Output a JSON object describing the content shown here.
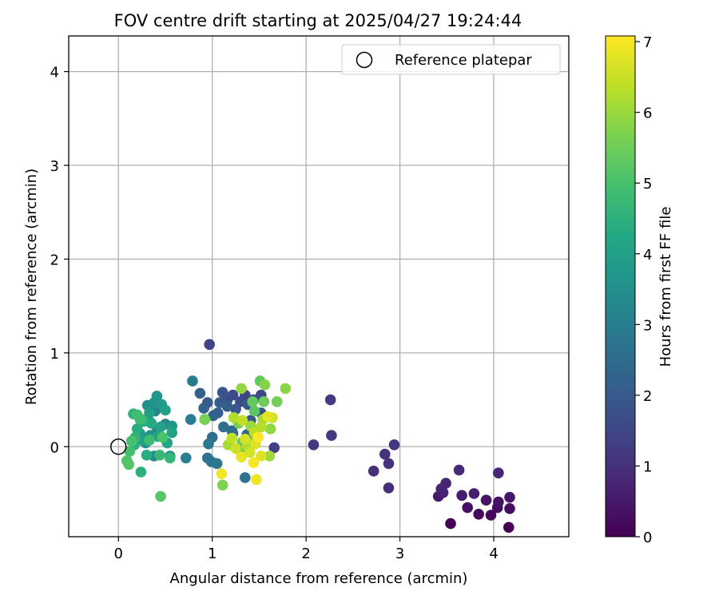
{
  "chart_data": {
    "type": "scatter",
    "title": "FOV centre drift starting at 2025/04/27 19:24:44",
    "xlabel": "Angular distance from reference (arcmin)",
    "ylabel": "Rotation from reference (arcmin)",
    "xlim": [
      -0.53,
      4.8
    ],
    "ylim": [
      -0.96,
      4.38
    ],
    "xticks": [
      "0",
      "1",
      "2",
      "3",
      "4"
    ],
    "yticks": [
      "0",
      "1",
      "2",
      "3",
      "4"
    ],
    "grid": true,
    "legend": {
      "position": "upper-right",
      "entries": [
        "Reference platepar"
      ]
    },
    "reference_point": {
      "x": 0,
      "y": 0
    },
    "colorbar": {
      "label": "Hours from first FF file",
      "range": [
        0,
        7.08
      ],
      "ticks": [
        "0",
        "1",
        "2",
        "3",
        "4",
        "5",
        "6",
        "7"
      ],
      "colormap": "viridis"
    },
    "points": [
      {
        "x": 4.16,
        "y": -0.86,
        "c": 0.0
      },
      {
        "x": 3.54,
        "y": -0.82,
        "c": 0.05
      },
      {
        "x": 3.97,
        "y": -0.73,
        "c": 0.1
      },
      {
        "x": 3.84,
        "y": -0.72,
        "c": 0.15
      },
      {
        "x": 4.04,
        "y": -0.65,
        "c": 0.2
      },
      {
        "x": 4.17,
        "y": -0.66,
        "c": 0.25
      },
      {
        "x": 3.72,
        "y": -0.65,
        "c": 0.3
      },
      {
        "x": 4.05,
        "y": -0.59,
        "c": 0.35
      },
      {
        "x": 3.92,
        "y": -0.57,
        "c": 0.4
      },
      {
        "x": 4.17,
        "y": -0.54,
        "c": 0.45
      },
      {
        "x": 3.41,
        "y": -0.53,
        "c": 0.5
      },
      {
        "x": 3.66,
        "y": -0.52,
        "c": 0.55
      },
      {
        "x": 3.79,
        "y": -0.5,
        "c": 0.6
      },
      {
        "x": 3.46,
        "y": -0.49,
        "c": 0.65
      },
      {
        "x": 3.44,
        "y": -0.45,
        "c": 0.7
      },
      {
        "x": 3.49,
        "y": -0.39,
        "c": 0.75
      },
      {
        "x": 4.05,
        "y": -0.28,
        "c": 0.8
      },
      {
        "x": 3.63,
        "y": -0.25,
        "c": 0.85
      },
      {
        "x": 2.88,
        "y": -0.44,
        "c": 0.9
      },
      {
        "x": 2.72,
        "y": -0.26,
        "c": 0.95
      },
      {
        "x": 2.88,
        "y": -0.18,
        "c": 1.0
      },
      {
        "x": 2.84,
        "y": -0.08,
        "c": 1.05
      },
      {
        "x": 2.94,
        "y": 0.02,
        "c": 1.1
      },
      {
        "x": 2.08,
        "y": 0.02,
        "c": 1.15
      },
      {
        "x": 2.27,
        "y": 0.12,
        "c": 1.2
      },
      {
        "x": 2.26,
        "y": 0.5,
        "c": 1.25
      },
      {
        "x": 1.66,
        "y": -0.01,
        "c": 1.3
      },
      {
        "x": 0.97,
        "y": 1.09,
        "c": 1.4
      },
      {
        "x": 1.35,
        "y": 0.55,
        "c": 1.45
      },
      {
        "x": 1.52,
        "y": 0.55,
        "c": 1.5
      },
      {
        "x": 1.22,
        "y": 0.55,
        "c": 1.55
      },
      {
        "x": 1.3,
        "y": 0.48,
        "c": 1.6
      },
      {
        "x": 1.16,
        "y": 0.5,
        "c": 1.65
      },
      {
        "x": 1.44,
        "y": 0.5,
        "c": 1.7
      },
      {
        "x": 1.52,
        "y": 0.36,
        "c": 1.75
      },
      {
        "x": 1.11,
        "y": 0.58,
        "c": 1.8
      },
      {
        "x": 1.25,
        "y": 0.4,
        "c": 1.85
      },
      {
        "x": 1.41,
        "y": 0.28,
        "c": 1.9
      },
      {
        "x": 1.38,
        "y": 0.45,
        "c": 1.95
      },
      {
        "x": 0.95,
        "y": 0.47,
        "c": 2.0
      },
      {
        "x": 1.08,
        "y": 0.47,
        "c": 2.05
      },
      {
        "x": 1.16,
        "y": 0.43,
        "c": 2.1
      },
      {
        "x": 1.06,
        "y": 0.36,
        "c": 2.15
      },
      {
        "x": 0.91,
        "y": 0.41,
        "c": 2.2
      },
      {
        "x": 0.87,
        "y": 0.57,
        "c": 2.25
      },
      {
        "x": 1.01,
        "y": 0.33,
        "c": 2.3
      },
      {
        "x": 1.21,
        "y": 0.17,
        "c": 2.35
      },
      {
        "x": 0.92,
        "y": 0.29,
        "c": 2.4
      },
      {
        "x": 1.37,
        "y": 0.13,
        "c": 2.45
      },
      {
        "x": 1.22,
        "y": 0.14,
        "c": 2.5
      },
      {
        "x": 1.0,
        "y": 0.1,
        "c": 2.55
      },
      {
        "x": 1.12,
        "y": 0.21,
        "c": 2.6
      },
      {
        "x": 1.35,
        "y": -0.33,
        "c": 2.65
      },
      {
        "x": 0.95,
        "y": -0.12,
        "c": 2.7
      },
      {
        "x": 0.99,
        "y": -0.16,
        "c": 2.75
      },
      {
        "x": 1.05,
        "y": -0.18,
        "c": 2.8
      },
      {
        "x": 0.96,
        "y": 0.03,
        "c": 2.85
      },
      {
        "x": 0.79,
        "y": 0.7,
        "c": 2.95
      },
      {
        "x": 0.77,
        "y": 0.29,
        "c": 3.0
      },
      {
        "x": 0.72,
        "y": -0.12,
        "c": 3.05
      },
      {
        "x": 0.39,
        "y": 0.38,
        "c": 3.15
      },
      {
        "x": 0.33,
        "y": 0.27,
        "c": 3.2
      },
      {
        "x": 0.5,
        "y": 0.24,
        "c": 3.25
      },
      {
        "x": 0.41,
        "y": 0.16,
        "c": 3.3
      },
      {
        "x": 0.38,
        "y": -0.1,
        "c": 3.35
      },
      {
        "x": 0.31,
        "y": 0.44,
        "c": 3.4
      },
      {
        "x": 0.55,
        "y": -0.1,
        "c": 3.5
      },
      {
        "x": 0.29,
        "y": 0.04,
        "c": 3.55
      },
      {
        "x": 0.34,
        "y": 0.12,
        "c": 3.6
      },
      {
        "x": 0.38,
        "y": 0.47,
        "c": 3.65
      },
      {
        "x": 0.41,
        "y": 0.54,
        "c": 3.7
      },
      {
        "x": 0.46,
        "y": 0.45,
        "c": 3.75
      },
      {
        "x": 0.57,
        "y": 0.22,
        "c": 3.8
      },
      {
        "x": 0.23,
        "y": 0.14,
        "c": 3.85
      },
      {
        "x": 0.25,
        "y": 0.07,
        "c": 3.9
      },
      {
        "x": 0.33,
        "y": 0.36,
        "c": 3.95
      },
      {
        "x": 0.5,
        "y": 0.39,
        "c": 4.0
      },
      {
        "x": 0.45,
        "y": 0.21,
        "c": 4.05
      },
      {
        "x": 0.57,
        "y": 0.15,
        "c": 4.1
      },
      {
        "x": 0.42,
        "y": 0.11,
        "c": 4.15
      },
      {
        "x": 0.52,
        "y": 0.04,
        "c": 4.2
      },
      {
        "x": 0.27,
        "y": 0.27,
        "c": 4.25
      },
      {
        "x": 0.35,
        "y": 0.25,
        "c": 4.3
      },
      {
        "x": 0.2,
        "y": 0.19,
        "c": 4.35
      },
      {
        "x": 0.3,
        "y": -0.09,
        "c": 4.4
      },
      {
        "x": 0.17,
        "y": 0.02,
        "c": 4.45
      },
      {
        "x": 0.24,
        "y": -0.27,
        "c": 4.5
      },
      {
        "x": 0.16,
        "y": 0.35,
        "c": 4.55
      },
      {
        "x": 0.18,
        "y": 0.1,
        "c": 4.6
      },
      {
        "x": 0.55,
        "y": -0.12,
        "c": 4.65
      },
      {
        "x": 0.44,
        "y": -0.09,
        "c": 4.7
      },
      {
        "x": 0.25,
        "y": 0.29,
        "c": 4.75
      },
      {
        "x": 0.23,
        "y": 0.29,
        "c": 4.8
      },
      {
        "x": 0.33,
        "y": 0.07,
        "c": 4.85
      },
      {
        "x": 0.2,
        "y": 0.34,
        "c": 4.9
      },
      {
        "x": 0.12,
        "y": -0.05,
        "c": 4.95
      },
      {
        "x": 0.14,
        "y": 0.06,
        "c": 5.0
      },
      {
        "x": 0.47,
        "y": 0.1,
        "c": 5.05
      },
      {
        "x": 0.09,
        "y": -0.15,
        "c": 5.1
      },
      {
        "x": 0.11,
        "y": -0.19,
        "c": 5.15
      },
      {
        "x": 0.45,
        "y": -0.53,
        "c": 5.2
      },
      {
        "x": 1.45,
        "y": 0.38,
        "c": 5.25
      },
      {
        "x": 1.32,
        "y": 0.05,
        "c": 5.3
      },
      {
        "x": 1.51,
        "y": 0.7,
        "c": 5.35
      },
      {
        "x": 1.43,
        "y": 0.48,
        "c": 5.4
      },
      {
        "x": 1.31,
        "y": -0.06,
        "c": 5.45
      },
      {
        "x": 1.55,
        "y": 0.48,
        "c": 5.5
      },
      {
        "x": 1.69,
        "y": 0.48,
        "c": 5.55
      },
      {
        "x": 1.28,
        "y": 0.25,
        "c": 5.6
      },
      {
        "x": 0.92,
        "y": 0.29,
        "c": 5.65
      },
      {
        "x": 1.11,
        "y": -0.41,
        "c": 5.7
      },
      {
        "x": 1.43,
        "y": 0.04,
        "c": 5.75
      },
      {
        "x": 1.56,
        "y": 0.66,
        "c": 5.8
      },
      {
        "x": 1.78,
        "y": 0.62,
        "c": 5.85
      },
      {
        "x": 1.62,
        "y": 0.19,
        "c": 5.9
      },
      {
        "x": 1.31,
        "y": 0.62,
        "c": 5.95
      },
      {
        "x": 1.41,
        "y": 0.22,
        "c": 6.0
      },
      {
        "x": 1.61,
        "y": -0.1,
        "c": 6.05
      },
      {
        "x": 1.54,
        "y": 0.29,
        "c": 6.1
      },
      {
        "x": 1.17,
        "y": 0.02,
        "c": 6.15
      },
      {
        "x": 1.37,
        "y": 0.01,
        "c": 6.2
      },
      {
        "x": 1.23,
        "y": 0.31,
        "c": 6.25
      },
      {
        "x": 1.52,
        "y": 0.21,
        "c": 6.3
      },
      {
        "x": 1.45,
        "y": 0.15,
        "c": 6.35
      },
      {
        "x": 1.32,
        "y": 0.28,
        "c": 6.4
      },
      {
        "x": 1.21,
        "y": 0.09,
        "c": 6.45
      },
      {
        "x": 1.25,
        "y": -0.02,
        "c": 6.5
      },
      {
        "x": 1.64,
        "y": 0.31,
        "c": 6.55
      },
      {
        "x": 1.4,
        "y": -0.06,
        "c": 6.6
      },
      {
        "x": 1.35,
        "y": 0.08,
        "c": 6.65
      },
      {
        "x": 1.46,
        "y": 0.03,
        "c": 6.7
      },
      {
        "x": 1.52,
        "y": -0.1,
        "c": 6.75
      },
      {
        "x": 1.59,
        "y": 0.32,
        "c": 6.8
      },
      {
        "x": 1.31,
        "y": -0.11,
        "c": 6.85
      },
      {
        "x": 1.47,
        "y": -0.35,
        "c": 6.9
      },
      {
        "x": 1.1,
        "y": -0.29,
        "c": 6.95
      },
      {
        "x": 1.44,
        "y": -0.17,
        "c": 7.0
      },
      {
        "x": 1.49,
        "y": 0.1,
        "c": 7.05
      }
    ]
  }
}
